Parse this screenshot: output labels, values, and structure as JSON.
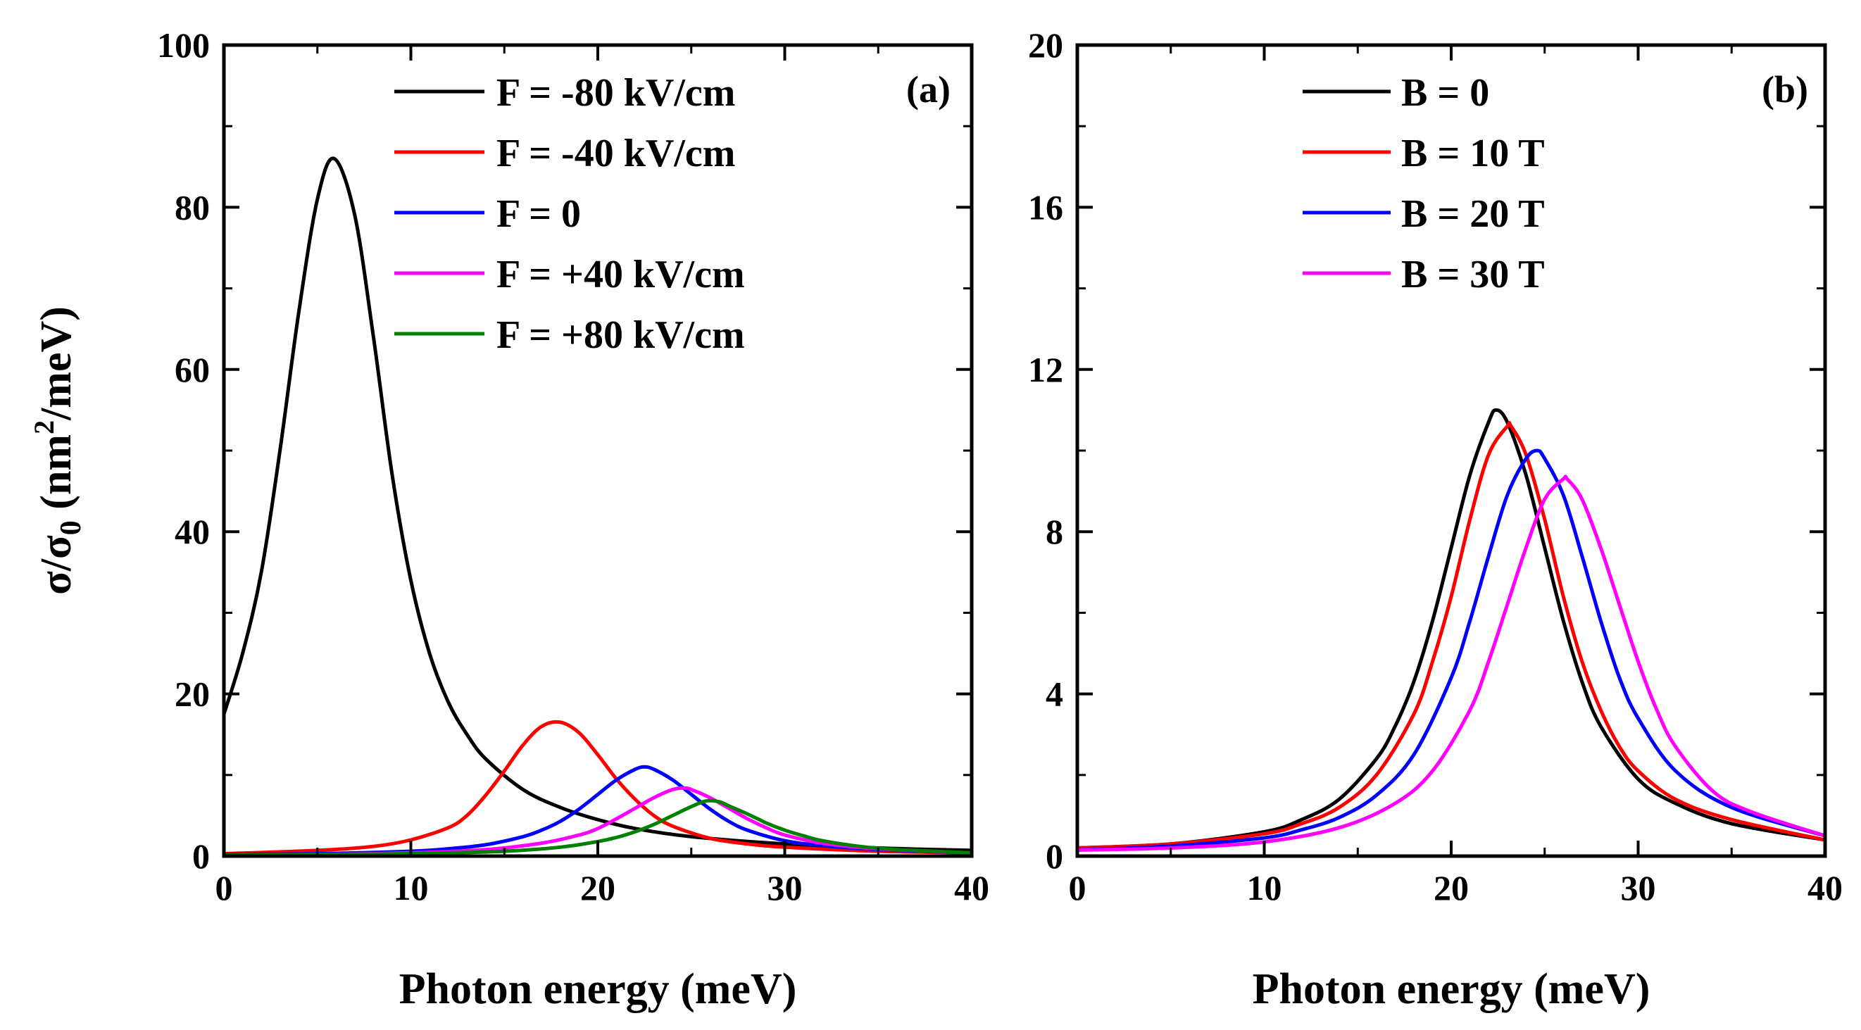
{
  "chart_data": [
    {
      "type": "line",
      "panel_label": "(a)",
      "xlabel": "Photon energy (meV)",
      "ylabel": {
        "sigma": "σ/σ",
        "sub0": "0",
        "open": " (nm",
        "sup2": "2",
        "close": "/meV)"
      },
      "xlim": [
        0,
        40
      ],
      "ylim": [
        0,
        100
      ],
      "xticks": [
        0,
        10,
        20,
        30,
        40
      ],
      "xtick_labels": [
        "0",
        "10",
        "20",
        "30",
        "40"
      ],
      "yticks": [
        0,
        20,
        40,
        60,
        80,
        100
      ],
      "ytick_labels": [
        "0",
        "20",
        "40",
        "60",
        "80",
        "100"
      ],
      "legend_position": "top-right",
      "series": [
        {
          "name": "F = -80 kV/cm",
          "color": "#000000",
          "x": [
            0,
            1,
            2,
            3,
            4,
            5,
            5.9,
            7,
            8,
            9,
            10,
            11,
            12,
            13,
            14,
            16,
            18,
            20,
            22,
            25,
            30,
            35,
            40
          ],
          "y": [
            17.5,
            25,
            35,
            50,
            67,
            81,
            86,
            79,
            64,
            47,
            34,
            25,
            19,
            15,
            12,
            8.2,
            6,
            4.5,
            3.4,
            2.4,
            1.5,
            1,
            0.7
          ]
        },
        {
          "name": "F = -40 kV/cm",
          "color": "#ff0000",
          "x": [
            0,
            5,
            8,
            10,
            12,
            13,
            14,
            15,
            16,
            17,
            18,
            19,
            20,
            21,
            22,
            23,
            24,
            26,
            28,
            30,
            35,
            40
          ],
          "y": [
            0.3,
            0.7,
            1.2,
            2,
            3.5,
            5,
            7.5,
            10.5,
            13.7,
            16,
            16.5,
            15.2,
            12.5,
            9.5,
            7,
            5,
            3.7,
            2.2,
            1.5,
            1.1,
            0.6,
            0.4
          ]
        },
        {
          "name": "F = 0",
          "color": "#0000ff",
          "x": [
            0,
            5,
            10,
            12,
            14,
            16,
            17,
            18,
            19,
            20,
            21,
            22,
            22.5,
            23,
            24,
            25,
            26,
            27,
            28,
            30,
            32,
            35,
            40
          ],
          "y": [
            0.2,
            0.3,
            0.6,
            0.9,
            1.4,
            2.4,
            3.2,
            4.3,
            5.8,
            7.6,
            9.4,
            10.7,
            11,
            10.7,
            9.4,
            7.6,
            5.8,
            4.3,
            3.2,
            1.9,
            1.3,
            0.8,
            0.4
          ]
        },
        {
          "name": "F = +40 kV/cm",
          "color": "#ff00ff",
          "x": [
            0,
            5,
            10,
            14,
            17,
            19,
            20,
            21,
            22,
            23,
            24,
            24.6,
            25,
            26,
            27,
            28,
            29,
            30,
            32,
            35,
            40
          ],
          "y": [
            0.1,
            0.2,
            0.4,
            0.8,
            1.6,
            2.6,
            3.4,
            4.6,
            5.9,
            7.2,
            8.2,
            8.4,
            8.2,
            7.2,
            5.9,
            4.6,
            3.5,
            2.6,
            1.6,
            0.9,
            0.4
          ]
        },
        {
          "name": "F = +80 kV/cm",
          "color": "#008000",
          "x": [
            0,
            5,
            10,
            15,
            18,
            20,
            21,
            22,
            23,
            24,
            25,
            25.8,
            26.5,
            27,
            28,
            29,
            30,
            31,
            32,
            34,
            36,
            40
          ],
          "y": [
            0.1,
            0.2,
            0.3,
            0.6,
            1.1,
            1.8,
            2.3,
            3,
            3.9,
            5,
            6.1,
            6.8,
            6.7,
            6.2,
            5.2,
            4.1,
            3.2,
            2.5,
            1.9,
            1.2,
            0.8,
            0.4
          ]
        }
      ]
    },
    {
      "type": "line",
      "panel_label": "(b)",
      "xlabel": "Photon energy (meV)",
      "xlim": [
        0,
        40
      ],
      "ylim": [
        0,
        20
      ],
      "xticks": [
        0,
        10,
        20,
        30,
        40
      ],
      "xtick_labels": [
        "0",
        "10",
        "20",
        "30",
        "40"
      ],
      "yticks": [
        0,
        4,
        8,
        12,
        16,
        20
      ],
      "ytick_labels": [
        "0",
        "4",
        "8",
        "12",
        "16",
        "20"
      ],
      "legend_position": "top-right",
      "series": [
        {
          "name": "B = 0",
          "color": "#000000",
          "x": [
            0,
            5,
            10,
            12,
            14,
            16,
            17,
            18,
            19,
            20,
            21,
            22,
            22.4,
            23,
            24,
            25,
            26,
            27,
            28,
            30,
            32,
            35,
            40
          ],
          "y": [
            0.2,
            0.3,
            0.6,
            0.9,
            1.4,
            2.4,
            3.2,
            4.3,
            5.8,
            7.6,
            9.4,
            10.7,
            11,
            10.7,
            9.4,
            7.6,
            5.8,
            4.3,
            3.2,
            1.9,
            1.3,
            0.8,
            0.4
          ]
        },
        {
          "name": "B = 10 T",
          "color": "#ff0000",
          "x": [
            0,
            5,
            10,
            12,
            14,
            16,
            18,
            19,
            20,
            21,
            22,
            23,
            23.2,
            24,
            25,
            26,
            27,
            28,
            29,
            30,
            32,
            35,
            40
          ],
          "y": [
            0.2,
            0.3,
            0.55,
            0.8,
            1.2,
            2,
            3.5,
            4.8,
            6.4,
            8.3,
            9.9,
            10.6,
            10.6,
            9.9,
            8.3,
            6.4,
            4.8,
            3.6,
            2.7,
            2.1,
            1.4,
            0.9,
            0.4
          ]
        },
        {
          "name": "B = 20 T",
          "color": "#0000ff",
          "x": [
            0,
            5,
            10,
            12,
            14,
            16,
            18,
            20,
            21,
            22,
            23,
            24,
            24.6,
            25,
            26,
            27,
            28,
            29,
            30,
            32,
            35,
            40
          ],
          "y": [
            0.15,
            0.25,
            0.45,
            0.65,
            0.95,
            1.5,
            2.5,
            4.4,
            5.8,
            7.4,
            8.9,
            9.8,
            10,
            9.8,
            8.9,
            7.4,
            5.8,
            4.4,
            3.4,
            2.1,
            1.2,
            0.5
          ]
        },
        {
          "name": "B = 30 T",
          "color": "#ff00ff",
          "x": [
            0,
            5,
            10,
            14,
            17,
            19,
            21,
            22,
            23,
            24,
            25,
            26,
            26.2,
            27,
            28,
            29,
            30,
            31,
            32,
            34,
            36,
            40
          ],
          "y": [
            0.15,
            0.2,
            0.35,
            0.7,
            1.3,
            2.1,
            3.6,
            4.8,
            6.2,
            7.6,
            8.8,
            9.3,
            9.3,
            8.8,
            7.6,
            6.2,
            4.8,
            3.6,
            2.7,
            1.6,
            1.1,
            0.5
          ]
        }
      ]
    }
  ]
}
